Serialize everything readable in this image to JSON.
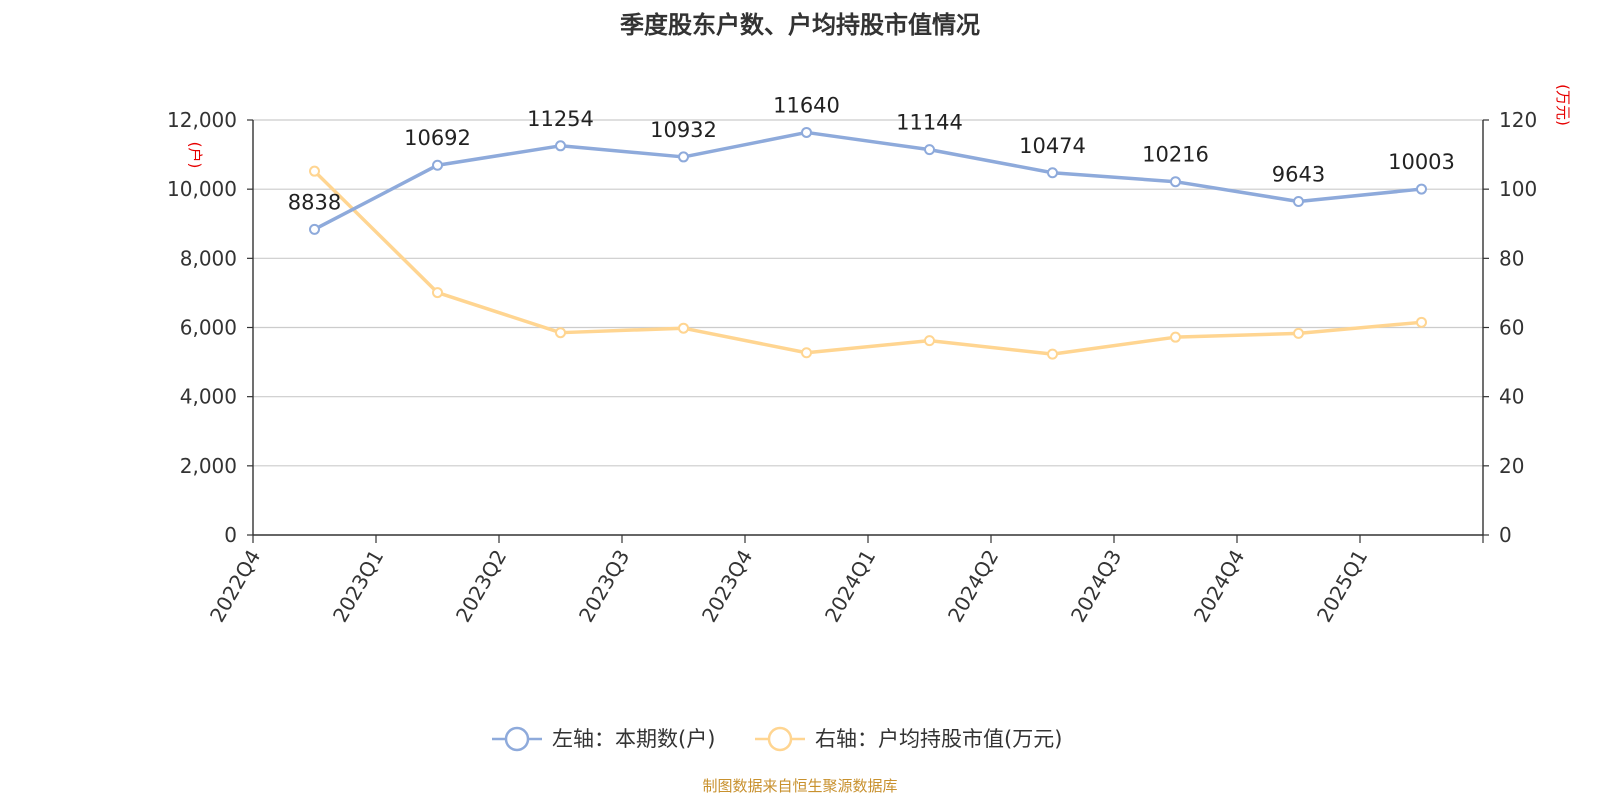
{
  "chart_data": {
    "type": "line",
    "title": "季度股东户数、户均持股市值情况",
    "categories": [
      "2022Q4",
      "2023Q1",
      "2023Q2",
      "2023Q3",
      "2023Q4",
      "2024Q1",
      "2024Q2",
      "2024Q3",
      "2024Q4",
      "2025Q1"
    ],
    "left_axis": {
      "unit": "(户)",
      "ylim": [
        0,
        12000
      ],
      "ticks": [
        "0",
        "2,000",
        "4,000",
        "6,000",
        "8,000",
        "10,000",
        "12,000"
      ]
    },
    "right_axis": {
      "unit": "(万元)",
      "ylim": [
        0,
        120
      ],
      "ticks": [
        "0",
        "20",
        "40",
        "60",
        "80",
        "100",
        "120"
      ]
    },
    "series": [
      {
        "name": "左轴：本期数(户)",
        "axis": "left",
        "color": "#8eaadb",
        "values": [
          8838,
          10692,
          11254,
          10932,
          11640,
          11144,
          10474,
          10216,
          9643,
          10003
        ],
        "labels": [
          "8838",
          "10692",
          "11254",
          "10932",
          "11640",
          "11144",
          "10474",
          "10216",
          "9643",
          "10003"
        ]
      },
      {
        "name": "右轴：户均持股市值(万元)",
        "axis": "right",
        "color": "#ffd591",
        "values": [
          105.2,
          70.1,
          58.5,
          59.8,
          52.7,
          56.2,
          52.3,
          57.2,
          58.3,
          61.5
        ]
      }
    ],
    "grid": true,
    "legend": "bottom-center",
    "source": "制图数据来自恒生聚源数据库"
  }
}
